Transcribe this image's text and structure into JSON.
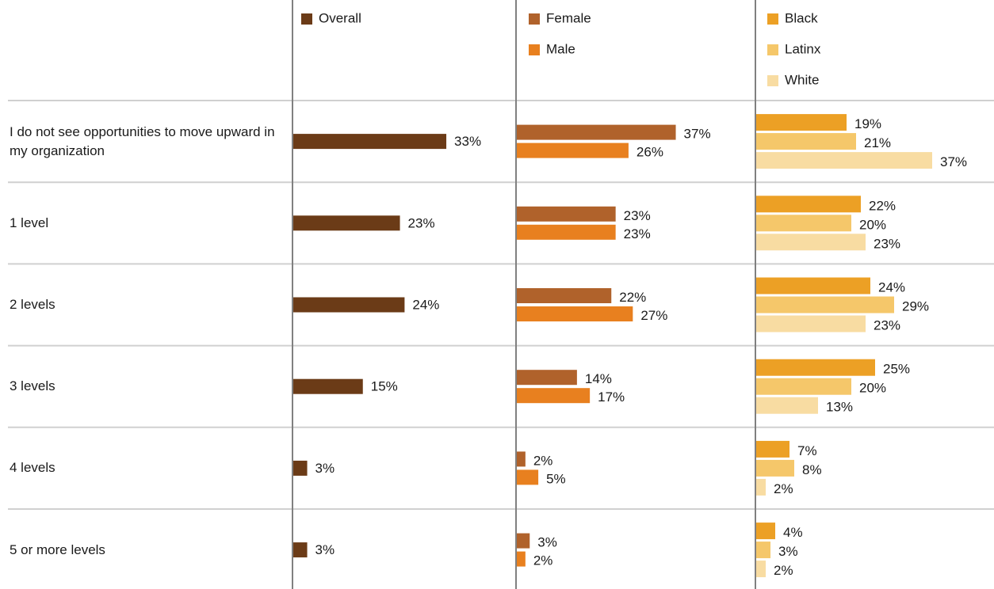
{
  "chart_data": {
    "type": "bar",
    "orientation": "horizontal",
    "categories": [
      "I do not see opportunities to move upward in my organization",
      "1 level",
      "2 levels",
      "3 levels",
      "4 levels",
      "5 or more levels"
    ],
    "panels": [
      {
        "series": [
          {
            "name": "Overall",
            "color": "#6b3b17",
            "values": [
              33,
              23,
              24,
              15,
              3,
              3
            ],
            "value_labels": [
              "33%",
              "23%",
              "24%",
              "15%",
              "3%",
              "3%"
            ]
          }
        ]
      },
      {
        "series": [
          {
            "name": "Female",
            "color": "#b0622b",
            "values": [
              37,
              23,
              22,
              14,
              2,
              3
            ],
            "value_labels": [
              "37%",
              "23%",
              "22%",
              "14%",
              "2%",
              "3%"
            ]
          },
          {
            "name": "Male",
            "color": "#e8801f",
            "values": [
              26,
              23,
              27,
              17,
              5,
              2
            ],
            "value_labels": [
              "26%",
              "23%",
              "27%",
              "17%",
              "5%",
              "2%"
            ]
          }
        ]
      },
      {
        "series": [
          {
            "name": "Black",
            "color": "#eca025",
            "values": [
              19,
              22,
              24,
              25,
              7,
              4
            ],
            "value_labels": [
              "19%",
              "22%",
              "24%",
              "25%",
              "7%",
              "4%"
            ]
          },
          {
            "name": "Latinx",
            "color": "#f5c76a",
            "values": [
              21,
              20,
              29,
              20,
              8,
              3
            ],
            "value_labels": [
              "21%",
              "20%",
              "29%",
              "20%",
              "8%",
              "3%"
            ]
          },
          {
            "name": "White",
            "color": "#f8dca2",
            "values": [
              37,
              23,
              23,
              13,
              2,
              2
            ],
            "value_labels": [
              "37%",
              "23%",
              "23%",
              "13%",
              "2%",
              "2%"
            ]
          }
        ]
      }
    ]
  }
}
